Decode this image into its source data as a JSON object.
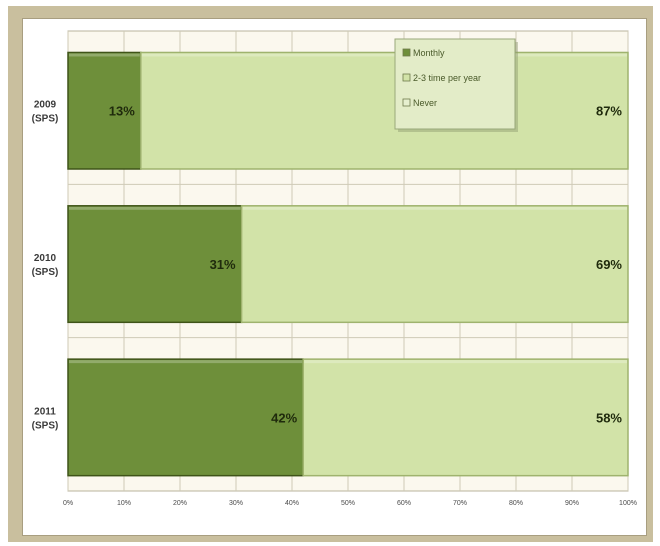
{
  "chart_data": {
    "type": "bar",
    "orientation": "horizontal",
    "stacked": true,
    "categories": [
      [
        "2009",
        "(SPS)"
      ],
      [
        "2010",
        "(SPS)"
      ],
      [
        "2011",
        "(SPS)"
      ]
    ],
    "series": [
      {
        "name": "Monthly",
        "values": [
          13,
          31,
          42
        ],
        "color": "#6e8f3a"
      },
      {
        "name": "2-3 time per year",
        "values": [
          87,
          69,
          58
        ],
        "color": "#d2e3a8"
      },
      {
        "name": "Never",
        "values": [
          0,
          0,
          0
        ],
        "color": "#e6efcf"
      }
    ],
    "data_labels": [
      [
        "13%",
        "31%",
        "42%"
      ],
      [
        "87%",
        "69%",
        "58%"
      ]
    ],
    "x_ticks": [
      "0%",
      "10%",
      "20%",
      "30%",
      "40%",
      "50%",
      "60%",
      "70%",
      "80%",
      "90%",
      "100%"
    ],
    "xlim": [
      0,
      100
    ],
    "grid": true,
    "legend_position": "top-center",
    "plot_background": "#fbf8ee",
    "frame_color": "#c9bf9e"
  }
}
